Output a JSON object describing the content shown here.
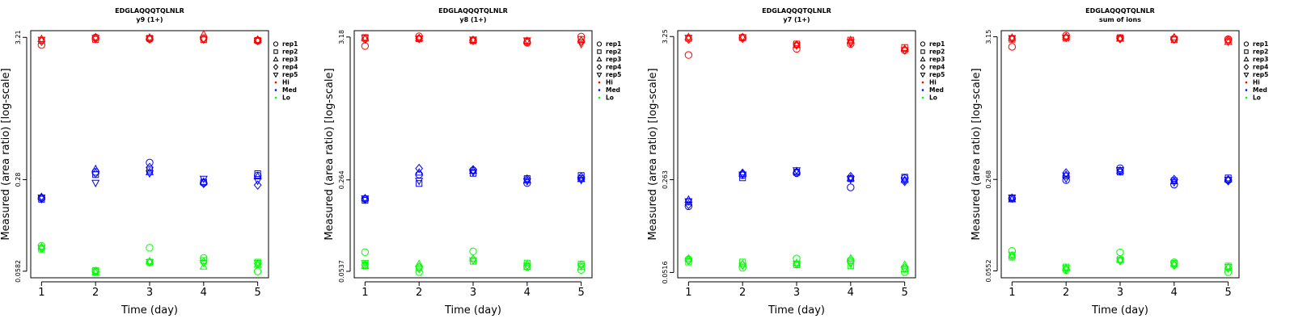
{
  "colors": {
    "Hi": "#ff0000",
    "Med": "#0000ff",
    "Lo": "#00ff00"
  },
  "legend": [
    {
      "label": "rep1",
      "marker": "circle"
    },
    {
      "label": "rep2",
      "marker": "square"
    },
    {
      "label": "rep3",
      "marker": "triangle"
    },
    {
      "label": "rep4",
      "marker": "diamond"
    },
    {
      "label": "rep5",
      "marker": "triangle-down"
    },
    {
      "label": "Hi",
      "marker": "dot",
      "color": "#ff0000"
    },
    {
      "label": "Med",
      "marker": "dot",
      "color": "#0000ff"
    },
    {
      "label": "Lo",
      "marker": "dot",
      "color": "#00ff00"
    }
  ],
  "chart_data": [
    {
      "type": "scatter",
      "title": "EDGLAQQQTQLNLR",
      "subtitle": "y9 (1+)",
      "xlabel": "Time (day)",
      "ylabel": "Measured (area ratio) [log-scale]",
      "x": [
        1,
        2,
        3,
        4,
        5
      ],
      "xlim": [
        0.8,
        5.2
      ],
      "y_log": true,
      "ylim": [
        0.052,
        3.6
      ],
      "y_ticks": [
        0.0582,
        0.28,
        3.21
      ],
      "y_tick_labels": [
        "0.0582",
        "0.28",
        "3.21"
      ],
      "grid": false,
      "legend_position": "right",
      "series": [
        {
          "name": "Hi",
          "color": "#ff0000",
          "reps": [
            [
              2.82,
              3.2,
              3.12,
              3.17,
              3.03
            ],
            [
              3.05,
              3.1,
              3.16,
              3.09,
              3.05
            ],
            [
              3.12,
              3.22,
              3.2,
              3.38,
              3.07
            ],
            [
              3.0,
              3.15,
              3.12,
              3.12,
              3.06
            ],
            [
              3.08,
              3.18,
              3.14,
              3.1,
              3.02
            ]
          ]
        },
        {
          "name": "Med",
          "color": "#0000ff",
          "reps": [
            [
              0.205,
              0.32,
              0.375,
              0.265,
              0.3
            ],
            [
              0.2,
              0.305,
              0.33,
              0.268,
              0.31
            ],
            [
              0.208,
              0.335,
              0.318,
              0.27,
              0.296
            ],
            [
              0.202,
              0.312,
              0.345,
              0.262,
              0.255
            ],
            [
              0.206,
              0.265,
              0.312,
              0.284,
              0.275
            ]
          ]
        },
        {
          "name": "Lo",
          "color": "#00ff00",
          "reps": [
            [
              0.09,
              0.058,
              0.087,
              0.073,
              0.058
            ],
            [
              0.085,
              0.059,
              0.068,
              0.07,
              0.068
            ],
            [
              0.088,
              0.057,
              0.069,
              0.063,
              0.065
            ],
            [
              0.086,
              0.058,
              0.068,
              0.068,
              0.066
            ],
            [
              0.087,
              0.058,
              0.068,
              0.067,
              0.067
            ]
          ]
        }
      ]
    },
    {
      "type": "scatter",
      "title": "EDGLAQQQTQLNLR",
      "subtitle": "y8 (1+)",
      "xlabel": "Time (day)",
      "ylabel": "Measured (area ratio) [log-scale]",
      "x": [
        1,
        2,
        3,
        4,
        5
      ],
      "xlim": [
        0.8,
        5.2
      ],
      "y_log": true,
      "ylim": [
        0.048,
        3.55
      ],
      "y_ticks": [
        0.0537,
        0.264,
        3.18
      ],
      "y_tick_labels": [
        "0.0537",
        "0.264",
        "3.18"
      ],
      "grid": false,
      "legend_position": "right",
      "series": [
        {
          "name": "Hi",
          "color": "#ff0000",
          "reps": [
            [
              2.72,
              3.22,
              3.0,
              2.88,
              3.2
            ],
            [
              3.15,
              3.08,
              2.98,
              2.95,
              3.05
            ],
            [
              3.1,
              3.12,
              3.02,
              2.97,
              3.0
            ],
            [
              3.05,
              3.1,
              3.0,
              2.92,
              2.95
            ],
            [
              3.12,
              3.1,
              3.04,
              3.0,
              2.82
            ]
          ]
        },
        {
          "name": "Med",
          "color": "#0000ff",
          "reps": [
            [
              0.19,
              0.29,
              0.312,
              0.25,
              0.27
            ],
            [
              0.185,
              0.248,
              0.296,
              0.27,
              0.285
            ],
            [
              0.192,
              0.3,
              0.31,
              0.262,
              0.268
            ],
            [
              0.188,
              0.322,
              0.315,
              0.268,
              0.278
            ],
            [
              0.191,
              0.26,
              0.302,
              0.258,
              0.264
            ]
          ]
        },
        {
          "name": "Lo",
          "color": "#00ff00",
          "reps": [
            [
              0.075,
              0.053,
              0.076,
              0.058,
              0.055
            ],
            [
              0.06,
              0.057,
              0.064,
              0.062,
              0.061
            ],
            [
              0.059,
              0.061,
              0.067,
              0.058,
              0.058
            ],
            [
              0.06,
              0.058,
              0.066,
              0.06,
              0.06
            ],
            [
              0.062,
              0.056,
              0.065,
              0.059,
              0.059
            ]
          ]
        }
      ]
    },
    {
      "type": "scatter",
      "title": "EDGLAQQQTQLNLR",
      "subtitle": "y7 (1+)",
      "xlabel": "Time (day)",
      "ylabel": "Measured (area ratio) [log-scale]",
      "x": [
        1,
        2,
        3,
        4,
        5
      ],
      "xlim": [
        0.8,
        5.2
      ],
      "y_log": true,
      "ylim": [
        0.047,
        3.6
      ],
      "y_ticks": [
        0.0516,
        0.263,
        3.25
      ],
      "y_tick_labels": [
        "0.0516",
        "0.263",
        "3.25"
      ],
      "grid": false,
      "legend_position": "right",
      "series": [
        {
          "name": "Hi",
          "color": "#ff0000",
          "reps": [
            [
              2.35,
              3.2,
              2.62,
              2.85,
              2.55
            ],
            [
              3.15,
              3.18,
              2.85,
              3.05,
              2.68
            ],
            [
              3.22,
              3.22,
              2.8,
              3.05,
              2.62
            ],
            [
              3.1,
              3.15,
              2.8,
              2.92,
              2.58
            ],
            [
              3.18,
              3.2,
              2.78,
              2.95,
              2.55
            ]
          ]
        },
        {
          "name": "Med",
          "color": "#0000ff",
          "reps": [
            [
              0.165,
              0.285,
              0.295,
              0.23,
              0.27
            ],
            [
              0.178,
              0.272,
              0.3,
              0.268,
              0.275
            ],
            [
              0.185,
              0.292,
              0.305,
              0.27,
              0.262
            ],
            [
              0.17,
              0.295,
              0.298,
              0.278,
              0.255
            ],
            [
              0.18,
              0.288,
              0.31,
              0.265,
              0.26
            ]
          ]
        },
        {
          "name": "Lo",
          "color": "#00ff00",
          "reps": [
            [
              0.065,
              0.056,
              0.066,
              0.064,
              0.052
            ],
            [
              0.062,
              0.062,
              0.059,
              0.058,
              0.055
            ],
            [
              0.066,
              0.06,
              0.061,
              0.066,
              0.059
            ],
            [
              0.064,
              0.059,
              0.06,
              0.062,
              0.056
            ],
            [
              0.063,
              0.058,
              0.06,
              0.06,
              0.055
            ]
          ]
        }
      ]
    },
    {
      "type": "scatter",
      "title": "EDGLAQQQTQLNLR",
      "subtitle": "sum of ions",
      "xlabel": "Time (day)",
      "ylabel": "Measured (area ratio) [log-scale]",
      "x": [
        1,
        2,
        3,
        4,
        5
      ],
      "xlim": [
        0.8,
        5.2
      ],
      "y_log": true,
      "ylim": [
        0.049,
        3.5
      ],
      "y_ticks": [
        0.0552,
        0.268,
        3.15
      ],
      "y_tick_labels": [
        "0.0552",
        "0.268",
        "3.15"
      ],
      "grid": false,
      "legend_position": "right",
      "series": [
        {
          "name": "Hi",
          "color": "#ff0000",
          "reps": [
            [
              2.65,
              3.22,
              3.08,
              3.05,
              3.02
            ],
            [
              3.02,
              3.08,
              3.1,
              3.0,
              2.98
            ],
            [
              3.1,
              3.15,
              3.05,
              3.12,
              2.88
            ],
            [
              3.05,
              3.12,
              3.05,
              3.05,
              2.95
            ],
            [
              3.08,
              3.1,
              3.04,
              3.0,
              2.9
            ]
          ]
        },
        {
          "name": "Med",
          "color": "#0000ff",
          "reps": [
            [
              0.192,
              0.265,
              0.325,
              0.245,
              0.265
            ],
            [
              0.195,
              0.285,
              0.305,
              0.262,
              0.275
            ],
            [
              0.19,
              0.29,
              0.312,
              0.26,
              0.268
            ],
            [
              0.194,
              0.3,
              0.31,
              0.268,
              0.262
            ],
            [
              0.196,
              0.272,
              0.315,
              0.255,
              0.266
            ]
          ]
        },
        {
          "name": "Lo",
          "color": "#00ff00",
          "reps": [
            [
              0.078,
              0.056,
              0.076,
              0.064,
              0.054
            ],
            [
              0.07,
              0.059,
              0.067,
              0.063,
              0.06
            ],
            [
              0.072,
              0.058,
              0.067,
              0.062,
              0.059
            ],
            [
              0.071,
              0.057,
              0.066,
              0.061,
              0.058
            ],
            [
              0.073,
              0.058,
              0.066,
              0.062,
              0.059
            ]
          ]
        }
      ]
    }
  ]
}
